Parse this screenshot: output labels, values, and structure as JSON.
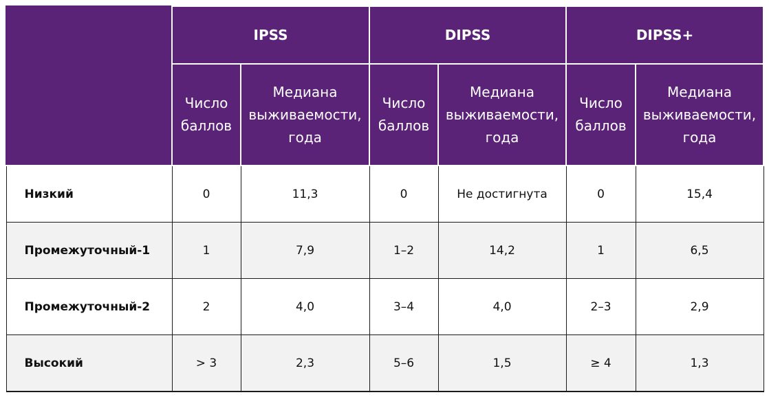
{
  "header": {
    "groups": [
      "IPSS",
      "DIPSS",
      "DIPSS+"
    ],
    "sub_score_lines": [
      "Число",
      "баллов"
    ],
    "sub_median_lines": [
      "Медиана",
      "выживаемости,",
      "года"
    ]
  },
  "rows": [
    {
      "label": "Низкий",
      "ipss_score": "0",
      "ipss_median": "11,3",
      "dipss_score": "0",
      "dipss_median": "Не достигнута",
      "dipssplus_score": "0",
      "dipssplus_median": "15,4"
    },
    {
      "label": "Промежуточный-1",
      "ipss_score": "1",
      "ipss_median": "7,9",
      "dipss_score": "1–2",
      "dipss_median": "14,2",
      "dipssplus_score": "1",
      "dipssplus_median": "6,5"
    },
    {
      "label": "Промежуточный-2",
      "ipss_score": "2",
      "ipss_median": "4,0",
      "dipss_score": "3–4",
      "dipss_median": "4,0",
      "dipssplus_score": "2–3",
      "dipssplus_median": "2,9"
    },
    {
      "label": "Высокий",
      "ipss_score": "> 3",
      "ipss_median": "2,3",
      "dipss_score": "5–6",
      "dipss_median": "1,5",
      "dipssplus_score": "≥ 4",
      "dipssplus_median": "1,3"
    }
  ]
}
